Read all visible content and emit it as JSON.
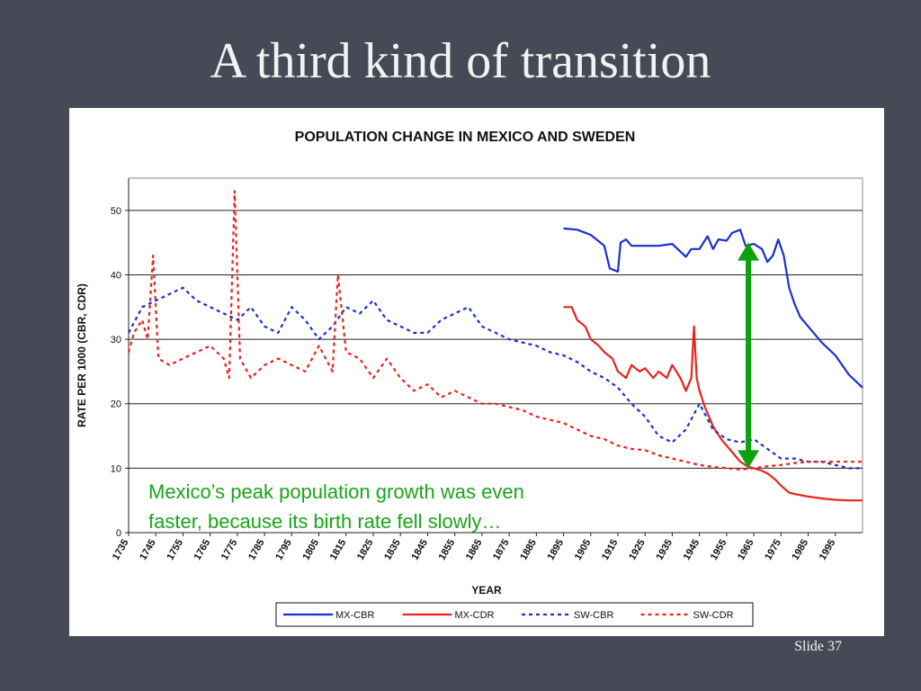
{
  "slide": {
    "title": "A third kind of transition",
    "annotation_line1": "Mexico’s peak population growth was even",
    "annotation_line2": "faster, because its birth rate fell slowly…",
    "slide_number": "Slide 37"
  },
  "chart_data": {
    "type": "line",
    "title": "POPULATION CHANGE IN MEXICO AND SWEDEN",
    "xlabel": "YEAR",
    "ylabel": "RATE PER 1000 (CBR, CDR)",
    "xlim": [
      1735,
      2005
    ],
    "ylim": [
      0,
      55
    ],
    "yticks": [
      0,
      10,
      20,
      30,
      40,
      50
    ],
    "xtick_labels": [
      "1735",
      "1745",
      "1755",
      "1765",
      "1775",
      "1785",
      "1795",
      "1805",
      "1815",
      "1825",
      "1835",
      "1845",
      "1855",
      "1865",
      "1875",
      "1885",
      "1895",
      "1905",
      "1915",
      "1925",
      "1935",
      "1945",
      "1955",
      "1965",
      "1975",
      "1985",
      "1995"
    ],
    "grid": "horizontal",
    "legend_position": "bottom",
    "series": [
      {
        "name": "MX-CBR",
        "color": "#1a2fd0",
        "style": "solid",
        "x": [
          1895,
          1900,
          1905,
          1910,
          1912,
          1915,
          1916,
          1918,
          1920,
          1925,
          1930,
          1935,
          1940,
          1942,
          1945,
          1948,
          1950,
          1952,
          1955,
          1957,
          1960,
          1962,
          1965,
          1968,
          1970,
          1972,
          1974,
          1976,
          1978,
          1980,
          1982,
          1985,
          1990,
          1995,
          2000,
          2005
        ],
        "y": [
          47.2,
          47,
          46.2,
          44.5,
          41,
          40.5,
          45,
          45.5,
          44.5,
          44.5,
          44.5,
          44.8,
          42.8,
          44,
          44,
          46,
          44,
          45.5,
          45.3,
          46.5,
          47,
          44.5,
          44.8,
          44,
          42,
          43,
          45.5,
          43,
          38,
          35.5,
          33.5,
          32,
          29.5,
          27.5,
          24.5,
          22.5
        ]
      },
      {
        "name": "MX-CDR",
        "color": "#e8231f",
        "style": "solid",
        "x": [
          1895,
          1898,
          1900,
          1903,
          1905,
          1908,
          1910,
          1913,
          1915,
          1918,
          1920,
          1923,
          1925,
          1928,
          1930,
          1933,
          1935,
          1938,
          1940,
          1942,
          1943,
          1944,
          1945,
          1947,
          1950,
          1953,
          1955,
          1958,
          1960,
          1963,
          1965,
          1968,
          1970,
          1973,
          1975,
          1978,
          1980,
          1985,
          1990,
          1995,
          2000,
          2005
        ],
        "y": [
          35,
          35,
          33,
          32,
          30,
          29,
          28,
          27,
          25,
          24,
          26,
          25,
          25.5,
          24,
          25,
          24,
          26,
          24,
          22,
          24,
          32,
          24,
          22,
          19.5,
          16.5,
          14.5,
          13.5,
          12,
          11,
          10.2,
          10,
          9.6,
          9.2,
          8.2,
          7.3,
          6.2,
          6,
          5.6,
          5.3,
          5.1,
          5,
          5
        ]
      },
      {
        "name": "SW-CBR",
        "color": "#1a2fd0",
        "style": "dashed",
        "x": [
          1735,
          1740,
          1745,
          1750,
          1755,
          1760,
          1765,
          1770,
          1775,
          1780,
          1785,
          1790,
          1795,
          1800,
          1805,
          1810,
          1815,
          1820,
          1825,
          1830,
          1835,
          1840,
          1845,
          1850,
          1855,
          1860,
          1865,
          1870,
          1875,
          1880,
          1885,
          1890,
          1895,
          1900,
          1905,
          1910,
          1915,
          1920,
          1925,
          1930,
          1935,
          1940,
          1945,
          1950,
          1955,
          1960,
          1965,
          1970,
          1975,
          1980,
          1985,
          1990,
          1995,
          2000,
          2005
        ],
        "y": [
          31,
          35,
          36,
          37,
          38,
          36,
          35,
          34,
          33,
          35,
          32,
          31,
          35,
          33,
          30,
          32,
          35,
          34,
          36,
          33,
          32,
          31,
          31,
          33,
          34,
          35,
          32,
          31,
          30,
          29.5,
          29,
          28,
          27.5,
          26.5,
          25,
          24,
          22.5,
          20,
          18,
          15,
          14,
          16,
          20,
          16,
          14.5,
          14,
          14.5,
          13,
          11.5,
          11.5,
          11,
          11,
          10.5,
          10,
          10
        ]
      },
      {
        "name": "SW-CDR",
        "color": "#e8231f",
        "style": "dashed",
        "x": [
          1735,
          1737,
          1740,
          1742,
          1744,
          1746,
          1750,
          1755,
          1760,
          1765,
          1770,
          1772,
          1774,
          1776,
          1780,
          1785,
          1790,
          1795,
          1800,
          1805,
          1810,
          1812,
          1815,
          1820,
          1825,
          1830,
          1835,
          1840,
          1845,
          1850,
          1855,
          1860,
          1865,
          1870,
          1875,
          1880,
          1885,
          1890,
          1895,
          1900,
          1905,
          1910,
          1915,
          1920,
          1925,
          1930,
          1935,
          1940,
          1945,
          1950,
          1955,
          1960,
          1965,
          1970,
          1975,
          1980,
          1985,
          1990,
          1995,
          2000,
          2005
        ],
        "y": [
          28,
          31,
          33,
          30,
          43,
          27,
          26,
          27,
          28,
          29,
          27,
          24,
          53,
          27,
          24,
          26,
          27,
          26,
          25,
          29,
          25,
          40,
          28,
          27,
          24,
          27,
          24,
          22,
          23,
          21,
          22,
          21,
          20,
          20,
          19.5,
          19,
          18,
          17.5,
          17,
          16,
          15,
          14.5,
          13.5,
          13,
          12.8,
          12,
          11.5,
          11,
          10.5,
          10.2,
          10,
          9.8,
          10,
          10.3,
          10.5,
          10.8,
          11,
          11,
          11,
          11,
          11
        ]
      }
    ],
    "annotation_arrow": {
      "x": 1963,
      "y_from": 45,
      "y_to": 10,
      "color": "#0aa30a"
    }
  }
}
